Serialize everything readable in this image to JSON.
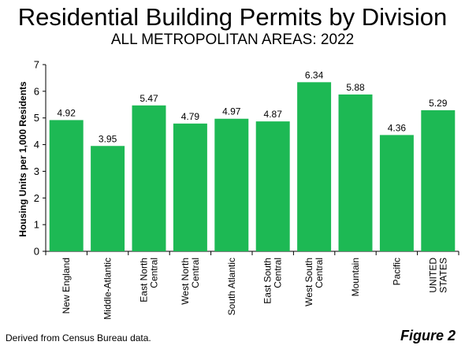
{
  "header": {
    "title": "Residential Building Permits by Division",
    "subtitle": "ALL METROPOLITAN AREAS: 2022"
  },
  "footer": {
    "source": "Derived from Census Bureau data.",
    "figure": "Figure 2"
  },
  "colors": {
    "bar": "#1db954",
    "axis": "#000000"
  },
  "chart_data": {
    "type": "bar",
    "title": "Residential Building Permits by Division",
    "subtitle": "ALL METROPOLITAN AREAS: 2022",
    "ylabel": "Housing Units per 1,000 Residents",
    "xlabel": "",
    "ylim": [
      0,
      7
    ],
    "yticks": [
      0,
      1,
      2,
      3,
      4,
      5,
      6,
      7
    ],
    "grid": false,
    "categories": [
      [
        "New England"
      ],
      [
        "Middle-Atlantic"
      ],
      [
        "East North",
        "Central"
      ],
      [
        "West North",
        "Central"
      ],
      [
        "South Atlantic"
      ],
      [
        "East South",
        "Central"
      ],
      [
        "West South",
        "Central"
      ],
      [
        "Mountain"
      ],
      [
        "Pacific"
      ],
      [
        "UNITED",
        "STATES"
      ]
    ],
    "values": [
      4.92,
      3.95,
      5.47,
      4.79,
      4.97,
      4.87,
      6.34,
      5.88,
      4.36,
      5.29
    ],
    "value_labels": [
      "4.92",
      "3.95",
      "5.47",
      "4.79",
      "4.97",
      "4.87",
      "6.34",
      "5.88",
      "4.36",
      "5.29"
    ]
  }
}
